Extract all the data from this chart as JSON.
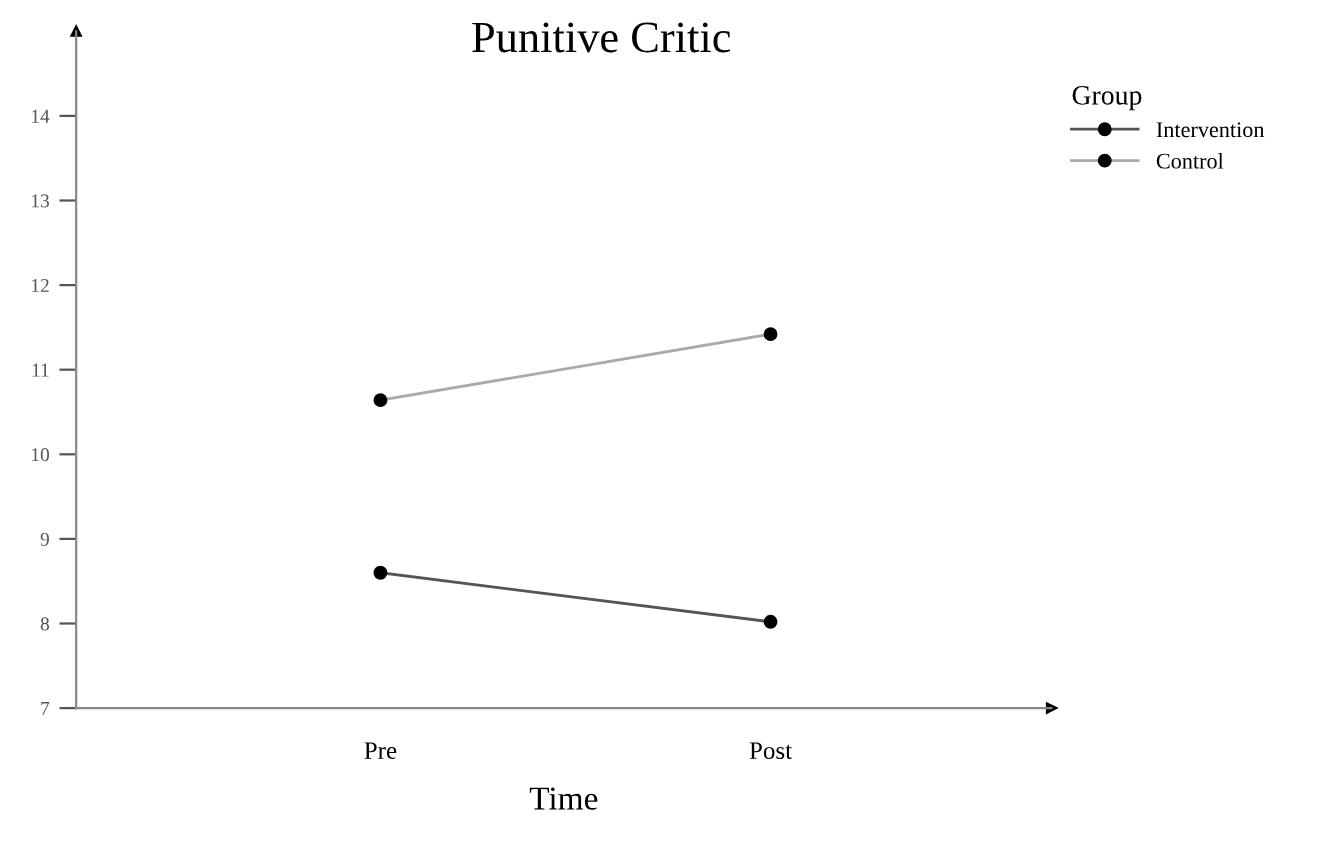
{
  "chart_data": {
    "type": "line",
    "title": "Punitive Critic",
    "xlabel": "Time",
    "legend_title": "Group",
    "categories": [
      "Pre",
      "Post"
    ],
    "series": [
      {
        "name": "Intervention",
        "color": "#555555",
        "values": [
          8.6,
          8.02
        ]
      },
      {
        "name": "Control",
        "color": "#aaaaaa",
        "values": [
          10.64,
          11.42
        ]
      }
    ],
    "ylim": [
      7,
      15
    ],
    "yticks": [
      7,
      8,
      9,
      10,
      11,
      12,
      13,
      14
    ],
    "marker": "circle",
    "line_style": "solid",
    "legend": "top right",
    "grid": false
  }
}
